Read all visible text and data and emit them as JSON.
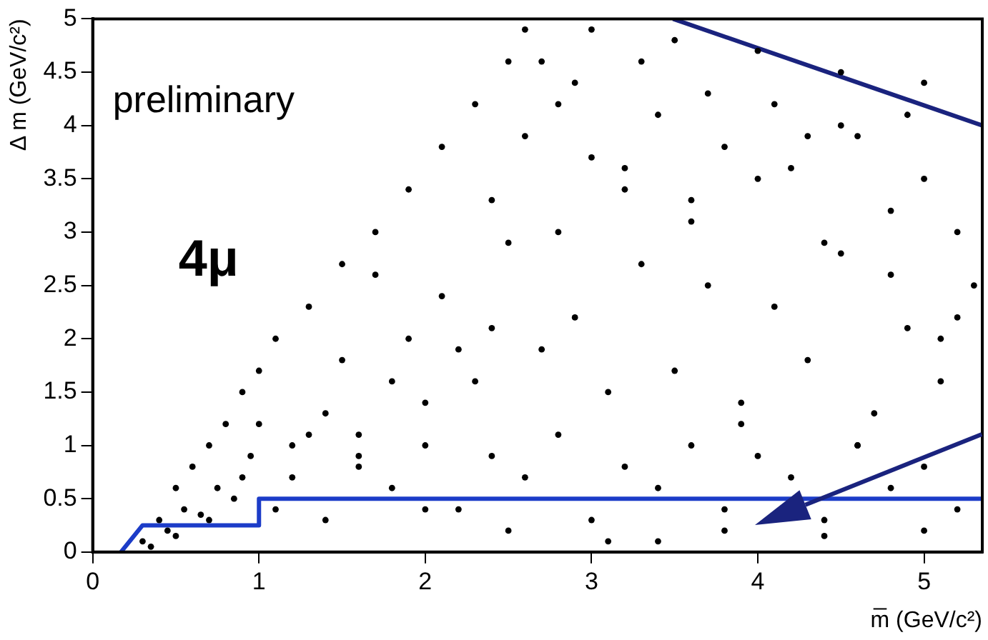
{
  "chart_data": {
    "type": "scatter",
    "xlabel": "m̅ (GeV/c²)",
    "ylabel": "Δ m (GeV/c²)",
    "annotations": [
      "preliminary",
      "4μ"
    ],
    "xlim": [
      0,
      5.35
    ],
    "xticks": [
      0,
      1,
      2,
      3,
      4,
      5
    ],
    "ylim": [
      0,
      5
    ],
    "yticks": [
      0,
      0.5,
      1,
      1.5,
      2,
      2.5,
      3,
      3.5,
      4,
      4.5,
      5
    ],
    "grid": false,
    "legend": false,
    "marker": "circle",
    "series": [
      {
        "color": "#000000",
        "x": [
          0.3,
          0.4,
          0.5,
          0.6,
          0.7,
          0.8,
          0.9,
          1.0,
          1.1,
          1.3,
          1.5,
          1.7,
          1.9,
          2.1,
          2.3,
          2.5,
          2.6,
          2.7,
          0.35,
          0.45,
          0.55,
          0.65,
          0.75,
          0.85,
          0.95,
          0.5,
          0.7,
          0.9,
          1.1,
          1.2,
          1.4,
          1.6,
          1.8,
          2.0,
          2.2,
          2.4,
          1.2,
          1.4,
          1.6,
          1.8,
          2.0,
          2.2,
          2.4,
          2.6,
          2.8,
          3.0,
          3.2,
          3.4,
          3.6,
          3.8,
          4.0,
          4.2,
          4.4,
          4.6,
          4.8,
          5.0,
          5.2,
          1.5,
          1.9,
          2.3,
          2.7,
          3.1,
          3.5,
          3.9,
          4.3,
          4.7,
          5.1,
          1.7,
          2.1,
          2.5,
          2.9,
          3.3,
          3.7,
          4.1,
          4.5,
          4.9,
          5.3,
          2.4,
          2.8,
          3.2,
          3.6,
          4.0,
          4.4,
          4.8,
          5.2,
          2.6,
          3.0,
          3.4,
          3.8,
          4.2,
          4.6,
          5.0,
          2.9,
          3.3,
          3.7,
          4.1,
          4.5,
          4.9,
          3.0,
          3.5,
          4.0,
          4.5,
          5.0,
          2.8,
          3.2,
          3.6,
          4.3,
          4.8,
          5.1,
          1.0,
          1.3,
          1.6,
          2.0,
          2.5,
          3.1,
          3.8,
          4.4,
          5.0,
          3.4,
          3.9,
          4.6,
          5.2
        ],
        "values": [
          0.1,
          0.3,
          0.6,
          0.8,
          1.0,
          1.2,
          1.5,
          1.7,
          2.0,
          2.3,
          2.7,
          3.0,
          3.4,
          3.8,
          4.2,
          4.6,
          4.9,
          4.6,
          0.05,
          0.2,
          0.4,
          0.35,
          0.6,
          0.5,
          0.9,
          0.15,
          0.3,
          0.7,
          0.4,
          1.0,
          1.3,
          1.1,
          1.6,
          1.4,
          1.9,
          2.1,
          0.7,
          0.3,
          0.8,
          0.6,
          1.0,
          0.4,
          0.9,
          0.7,
          1.1,
          0.3,
          0.8,
          0.6,
          1.0,
          0.4,
          0.9,
          0.7,
          0.3,
          1.0,
          0.6,
          0.8,
          0.4,
          1.8,
          2.0,
          1.6,
          1.9,
          1.5,
          1.7,
          1.4,
          1.8,
          1.3,
          1.6,
          2.6,
          2.4,
          2.9,
          2.2,
          2.7,
          2.5,
          2.3,
          2.8,
          2.1,
          2.5,
          3.3,
          3.0,
          3.4,
          3.1,
          3.5,
          2.9,
          3.2,
          3.0,
          3.9,
          3.7,
          4.1,
          3.8,
          3.6,
          3.9,
          3.5,
          4.4,
          4.6,
          4.3,
          4.2,
          4.0,
          4.1,
          4.9,
          4.8,
          4.7,
          4.5,
          4.4,
          4.2,
          3.6,
          3.3,
          3.9,
          2.6,
          2.0,
          1.2,
          1.1,
          0.9,
          0.4,
          0.2,
          0.1,
          0.2,
          0.15,
          0.2,
          0.1,
          1.2,
          1.0,
          2.2
        ]
      },
      {
        "type": "line",
        "marker": "none",
        "color": "#1c3cc8",
        "x": [
          0.17,
          0.3,
          1.0,
          1.0,
          5.35
        ],
        "values": [
          0,
          0.25,
          0.25,
          0.5,
          0.5
        ]
      },
      {
        "type": "line",
        "marker": "none",
        "color": "#1a237e",
        "x": [
          3.49,
          5.35
        ],
        "values": [
          5,
          4
        ]
      }
    ]
  }
}
